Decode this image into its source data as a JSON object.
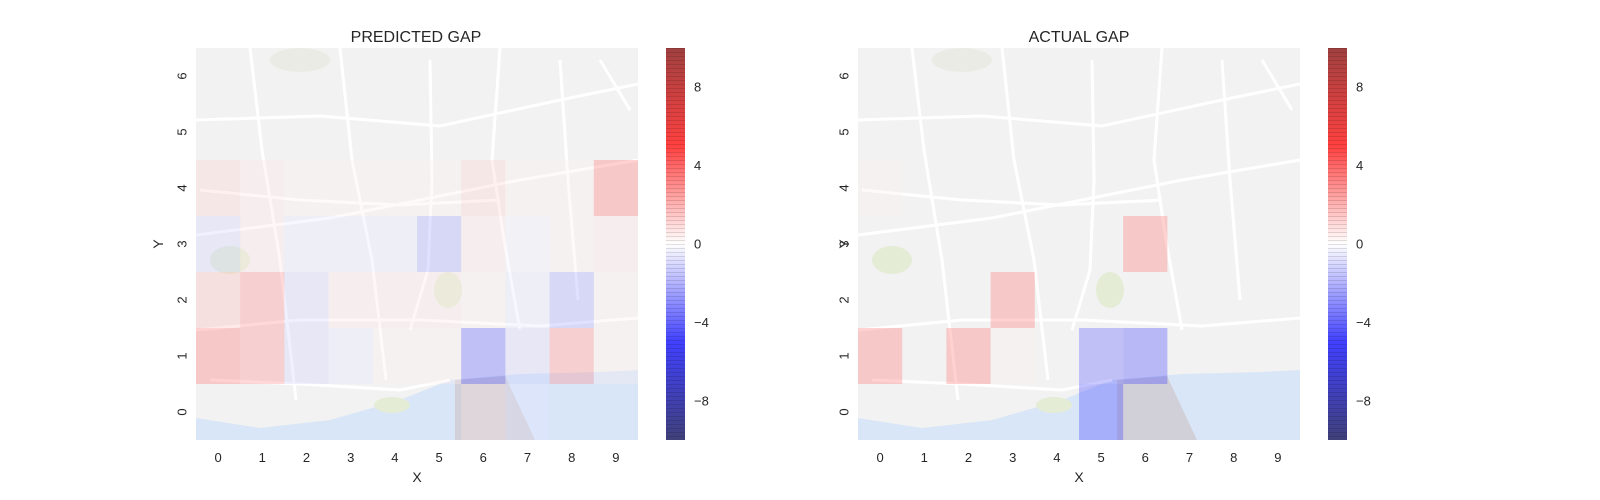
{
  "chart_data": [
    {
      "type": "heatmap",
      "title": "PREDICTED GAP",
      "xlabel": "X",
      "ylabel": "Y",
      "x_ticks": [
        0,
        1,
        2,
        3,
        4,
        5,
        6,
        7,
        8,
        9
      ],
      "y_ticks": [
        0,
        1,
        2,
        3,
        4,
        5,
        6
      ],
      "xlim": [
        -0.5,
        9.5
      ],
      "ylim": [
        -0.5,
        6.5
      ],
      "background": "street map of Porto",
      "colormap": "seismic",
      "vmin": -10,
      "vmax": 10,
      "colorbar_ticks": [
        8,
        4,
        0,
        -4,
        -8
      ],
      "colorbar_tick_labels": [
        "8",
        "4",
        "0",
        "−4",
        "−8"
      ],
      "cells": [
        {
          "x": 0,
          "y": 4,
          "value": 1
        },
        {
          "x": 1,
          "y": 4,
          "value": 0.5
        },
        {
          "x": 2,
          "y": 4,
          "value": 0.3
        },
        {
          "x": 3,
          "y": 4,
          "value": 0.3
        },
        {
          "x": 4,
          "y": 4,
          "value": 0.3
        },
        {
          "x": 5,
          "y": 4,
          "value": 0.3
        },
        {
          "x": 6,
          "y": 4,
          "value": 1
        },
        {
          "x": 7,
          "y": 4,
          "value": 0.3
        },
        {
          "x": 8,
          "y": 4,
          "value": 0.3
        },
        {
          "x": 9,
          "y": 4,
          "value": 3
        },
        {
          "x": 0,
          "y": 3,
          "value": -1
        },
        {
          "x": 1,
          "y": 3,
          "value": 0.5
        },
        {
          "x": 2,
          "y": 3,
          "value": -0.5
        },
        {
          "x": 3,
          "y": 3,
          "value": -0.5
        },
        {
          "x": 4,
          "y": 3,
          "value": -0.5
        },
        {
          "x": 5,
          "y": 3,
          "value": -2
        },
        {
          "x": 6,
          "y": 3,
          "value": 0.5
        },
        {
          "x": 7,
          "y": 3,
          "value": -0.3
        },
        {
          "x": 8,
          "y": 3,
          "value": 0.3
        },
        {
          "x": 9,
          "y": 3,
          "value": 0.5
        },
        {
          "x": 0,
          "y": 2,
          "value": 1.5
        },
        {
          "x": 1,
          "y": 2,
          "value": 2.5
        },
        {
          "x": 2,
          "y": 2,
          "value": -1
        },
        {
          "x": 3,
          "y": 2,
          "value": 0.5
        },
        {
          "x": 4,
          "y": 2,
          "value": 0.5
        },
        {
          "x": 5,
          "y": 2,
          "value": 0.5
        },
        {
          "x": 6,
          "y": 2,
          "value": 0.3
        },
        {
          "x": 7,
          "y": 2,
          "value": -0.5
        },
        {
          "x": 8,
          "y": 2,
          "value": -2
        },
        {
          "x": 9,
          "y": 2,
          "value": 0.3
        },
        {
          "x": 0,
          "y": 1,
          "value": 3
        },
        {
          "x": 1,
          "y": 1,
          "value": 2.5
        },
        {
          "x": 2,
          "y": 1,
          "value": -1
        },
        {
          "x": 3,
          "y": 1,
          "value": -0.5
        },
        {
          "x": 4,
          "y": 1,
          "value": 0.3
        },
        {
          "x": 5,
          "y": 1,
          "value": 0.3
        },
        {
          "x": 6,
          "y": 1,
          "value": -3.5
        },
        {
          "x": 7,
          "y": 1,
          "value": -1
        },
        {
          "x": 8,
          "y": 1,
          "value": 2.5
        },
        {
          "x": 9,
          "y": 1,
          "value": 0.3
        },
        {
          "x": 6,
          "y": 0,
          "value": 0.5
        },
        {
          "x": 7,
          "y": 0,
          "value": -0.5
        }
      ]
    },
    {
      "type": "heatmap",
      "title": "ACTUAL GAP",
      "xlabel": "X",
      "ylabel": "Y",
      "x_ticks": [
        0,
        1,
        2,
        3,
        4,
        5,
        6,
        7,
        8,
        9
      ],
      "y_ticks": [
        0,
        1,
        2,
        3,
        4,
        5,
        6
      ],
      "xlim": [
        -0.5,
        9.5
      ],
      "ylim": [
        -0.5,
        6.5
      ],
      "background": "street map of Porto",
      "colormap": "seismic",
      "vmin": -10,
      "vmax": 10,
      "colorbar_ticks": [
        8,
        4,
        0,
        -4,
        -8
      ],
      "colorbar_tick_labels": [
        "8",
        "4",
        "0",
        "−4",
        "−8"
      ],
      "cells": [
        {
          "x": 0,
          "y": 4,
          "value": 0.3
        },
        {
          "x": 6,
          "y": 3,
          "value": 3
        },
        {
          "x": 3,
          "y": 2,
          "value": 3
        },
        {
          "x": 0,
          "y": 1,
          "value": 3
        },
        {
          "x": 2,
          "y": 1,
          "value": 3
        },
        {
          "x": 3,
          "y": 1,
          "value": 0.3
        },
        {
          "x": 5,
          "y": 1,
          "value": -3.5
        },
        {
          "x": 6,
          "y": 1,
          "value": -4
        },
        {
          "x": 5,
          "y": 0,
          "value": -4
        }
      ]
    }
  ],
  "colors": {
    "map_background": "#f2f2f2",
    "road": "#ffffff",
    "water": "#d9e6f7",
    "park": "#e4ecd6"
  }
}
